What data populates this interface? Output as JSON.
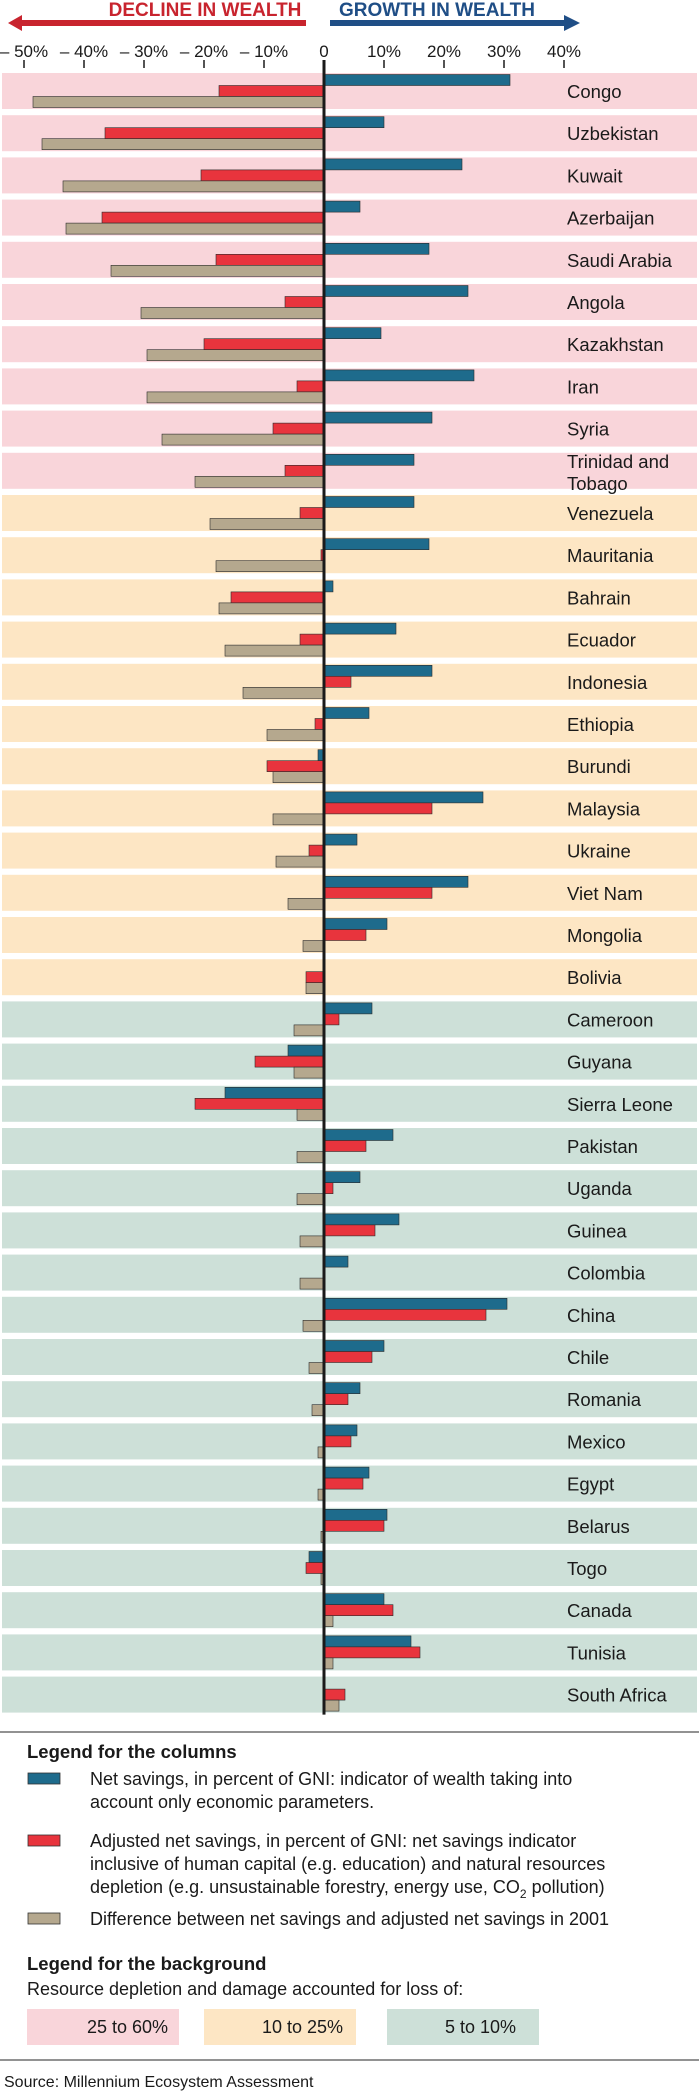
{
  "chart_data": {
    "type": "bar",
    "orientation": "horizontal",
    "header": {
      "left": "DECLINE IN WEALTH",
      "right": "GROWTH IN WEALTH"
    },
    "x_ticks": [
      -50,
      -40,
      -30,
      -20,
      -10,
      0,
      10,
      20,
      30,
      40
    ],
    "x_tick_labels": [
      "– 50%",
      "– 40%",
      "– 30%",
      "– 20%",
      "– 10%",
      "0",
      "10%",
      "20%",
      "30%",
      "40%"
    ],
    "xlim": [
      -55,
      41
    ],
    "categories": [
      "Congo",
      "Uzbekistan",
      "Kuwait",
      "Azerbaijan",
      "Saudi Arabia",
      "Angola",
      "Kazakhstan",
      "Iran",
      "Syria",
      "Trinidad and Tobago",
      "Venezuela",
      "Mauritania",
      "Bahrain",
      "Ecuador",
      "Indonesia",
      "Ethiopia",
      "Burundi",
      "Malaysia",
      "Ukraine",
      "Viet Nam",
      "Mongolia",
      "Bolivia",
      "Cameroon",
      "Guyana",
      "Sierra Leone",
      "Pakistan",
      "Uganda",
      "Guinea",
      "Colombia",
      "China",
      "Chile",
      "Romania",
      "Mexico",
      "Egypt",
      "Belarus",
      "Togo",
      "Canada",
      "Tunisia",
      "South Africa"
    ],
    "category_lines": [
      [
        "Congo"
      ],
      [
        "Uzbekistan"
      ],
      [
        "Kuwait"
      ],
      [
        "Azerbaijan"
      ],
      [
        "Saudi Arabia"
      ],
      [
        "Angola"
      ],
      [
        "Kazakhstan"
      ],
      [
        "Iran"
      ],
      [
        "Syria"
      ],
      [
        "Trinidad and",
        "Tobago"
      ],
      [
        "Venezuela"
      ],
      [
        "Mauritania"
      ],
      [
        "Bahrain"
      ],
      [
        "Ecuador"
      ],
      [
        "Indonesia"
      ],
      [
        "Ethiopia"
      ],
      [
        "Burundi"
      ],
      [
        "Malaysia"
      ],
      [
        "Ukraine"
      ],
      [
        "Viet Nam"
      ],
      [
        "Mongolia"
      ],
      [
        "Bolivia"
      ],
      [
        "Cameroon"
      ],
      [
        "Guyana"
      ],
      [
        "Sierra Leone"
      ],
      [
        "Pakistan"
      ],
      [
        "Uganda"
      ],
      [
        "Guinea"
      ],
      [
        "Colombia"
      ],
      [
        "China"
      ],
      [
        "Chile"
      ],
      [
        "Romania"
      ],
      [
        "Mexico"
      ],
      [
        "Egypt"
      ],
      [
        "Belarus"
      ],
      [
        "Togo"
      ],
      [
        "Canada"
      ],
      [
        "Tunisia"
      ],
      [
        "South Africa"
      ]
    ],
    "depletion_band": [
      0,
      0,
      0,
      0,
      0,
      0,
      0,
      0,
      0,
      0,
      1,
      1,
      1,
      1,
      1,
      1,
      1,
      1,
      1,
      1,
      1,
      1,
      2,
      2,
      2,
      2,
      2,
      2,
      2,
      2,
      2,
      2,
      2,
      2,
      2,
      2,
      2,
      2,
      2
    ],
    "series": [
      {
        "name": "Net savings, in percent of GNI: indicator of wealth taking into account only economic parameters.",
        "color": "#1e6b8c",
        "values": [
          31,
          10,
          23,
          6,
          17.5,
          24,
          9.5,
          25,
          18,
          15,
          15,
          17.5,
          1.5,
          12,
          18,
          7.5,
          -1,
          26.5,
          5.5,
          24,
          10.5,
          0,
          8,
          -6,
          -16.5,
          11.5,
          6,
          12.5,
          4,
          30.5,
          10,
          6,
          5.5,
          7.5,
          10.5,
          -2.5,
          10,
          14.5,
          0
        ]
      },
      {
        "name": "Adjusted net savings, in percent of GNI: net savings indicator inclusive of human capital (e.g. education) and natural resources depletion (e.g. unsustainable forestry, energy use, CO2 pollution)",
        "color": "#e8343d",
        "values": [
          -17.5,
          -36.5,
          -20.5,
          -37,
          -18,
          -6.5,
          -20,
          -4.5,
          -8.5,
          -6.5,
          -4,
          -0.5,
          -15.5,
          -4,
          4.5,
          -1.5,
          -9.5,
          18,
          -2.5,
          18,
          7,
          -3,
          2.5,
          -11.5,
          -21.5,
          7,
          1.5,
          8.5,
          0,
          27,
          8,
          4,
          4.5,
          6.5,
          10,
          -3,
          11.5,
          16,
          3.5
        ]
      },
      {
        "name": "Difference between net savings and adjusted net savings in 2001",
        "color": "#b5a88e",
        "values": [
          -48.5,
          -47,
          -43.5,
          -43,
          -35.5,
          -30.5,
          -29.5,
          -29.5,
          -27,
          -21.5,
          -19,
          -18,
          -17.5,
          -16.5,
          -13.5,
          -9.5,
          -8.5,
          -8.5,
          -8,
          -6,
          -3.5,
          -3,
          -5,
          -5,
          -4.5,
          -4.5,
          -4.5,
          -4,
          -4,
          -3.5,
          -2.5,
          -2,
          -1,
          -1,
          -0.5,
          -0.5,
          1.5,
          1.5,
          2.5
        ]
      }
    ],
    "legend_title": "Legend for the columns",
    "background_legend": {
      "title": "Legend for the background",
      "subtitle": "Resource depletion and damage accounted for loss of:",
      "bands": [
        {
          "label": "25 to 60%",
          "color": "#f9d5da"
        },
        {
          "label": "10 to 25%",
          "color": "#fde6c4"
        },
        {
          "label": "5 to 10%",
          "color": "#cde0d8"
        }
      ]
    },
    "source": "Source: Millennium Ecosystem Assessment"
  },
  "legend_lines": {
    "net": [
      "Net savings, in percent of GNI: indicator of wealth taking into",
      "account only economic parameters."
    ],
    "adjusted": [
      "Adjusted net savings, in percent of GNI: net savings indicator",
      "inclusive of human capital (e.g. education) and natural resources",
      "depletion (e.g. unsustainable forestry, energy use, CO",
      "2",
      " pollution)"
    ],
    "difference": [
      "Difference between net savings and adjusted net savings in 2001"
    ]
  },
  "colors": {
    "decline": "#c8242e",
    "growth": "#1f4e86",
    "axis": "#1a1a1a",
    "tick": "#1a1a1a"
  }
}
